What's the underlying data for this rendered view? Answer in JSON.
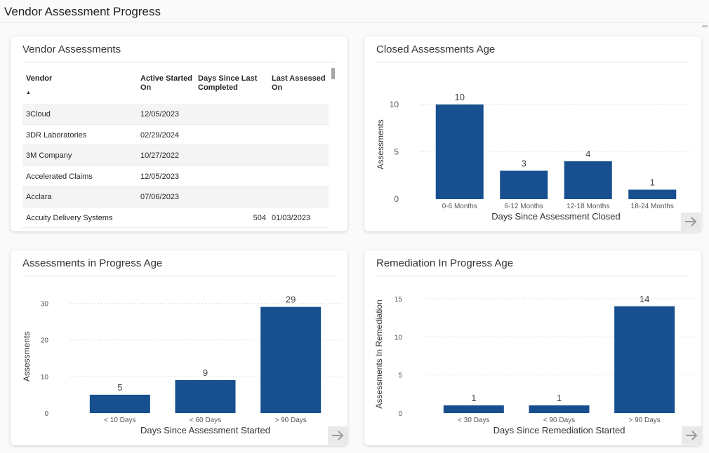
{
  "page": {
    "title": "Vendor Assessment Progress"
  },
  "vendor_table": {
    "title": "Vendor Assessments",
    "columns": [
      "Vendor",
      "Active Started On",
      "Days Since Last Completed",
      "Last Assessed On"
    ],
    "rows": [
      [
        "3Cloud",
        "12/05/2023",
        "",
        ""
      ],
      [
        "3DR Laboratories",
        "02/29/2024",
        "",
        ""
      ],
      [
        "3M Company",
        "10/27/2022",
        "",
        ""
      ],
      [
        "Accelerated Claims",
        "12/05/2023",
        "",
        ""
      ],
      [
        "Acclara",
        "07/06/2023",
        "",
        ""
      ],
      [
        "Accuity Delivery Systems",
        "",
        "504",
        "01/03/2023"
      ]
    ]
  },
  "chart_data": [
    {
      "type": "bar",
      "title": "Closed Assessments Age",
      "categories": [
        "0-6 Months",
        "6-12 Months",
        "12-18 Months",
        "18-24 Months"
      ],
      "values": [
        10,
        3,
        4,
        1
      ],
      "xlabel": "Days Since Assessment Closed",
      "ylabel": "Assessments",
      "ylim": [
        0,
        12
      ],
      "yticks": [
        0,
        5,
        10
      ],
      "grid": true,
      "color": "#174f8f"
    },
    {
      "type": "bar",
      "title": "Assessments in Progress Age",
      "categories": [
        "< 10 Days",
        "< 60 Days",
        "> 90 Days"
      ],
      "values": [
        5,
        9,
        29
      ],
      "xlabel": "Days Since Assessment Started",
      "ylabel": "Assessments",
      "ylim": [
        0,
        32
      ],
      "yticks": [
        0,
        10,
        20,
        30
      ],
      "grid": true,
      "color": "#174f8f"
    },
    {
      "type": "bar",
      "title": "Remediation In Progress Age",
      "categories": [
        "< 30 Days",
        "< 90 Days",
        "> 90 Days"
      ],
      "values": [
        1,
        1,
        14
      ],
      "xlabel": "Days Since Remediation Started",
      "ylabel": "Assessments In Remediation",
      "ylim": [
        0,
        16
      ],
      "yticks": [
        0,
        5,
        10,
        15
      ],
      "grid": true,
      "color": "#174f8f"
    }
  ],
  "icons": {
    "nav": "arrow-right-icon"
  }
}
